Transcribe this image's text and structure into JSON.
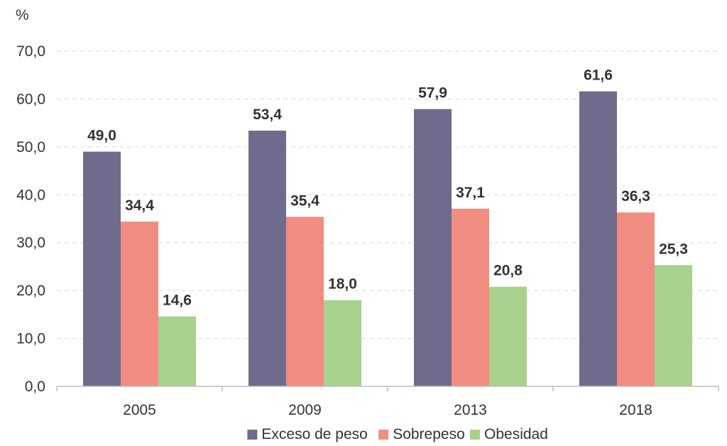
{
  "chart_data": {
    "type": "bar",
    "unit_label": "%",
    "categories": [
      "2005",
      "2009",
      "2013",
      "2018"
    ],
    "series": [
      {
        "name": "Exceso de peso",
        "color": "#6f6b8c",
        "values": [
          49.0,
          53.4,
          57.9,
          61.6
        ],
        "labels": [
          "49,0",
          "53,4",
          "57,9",
          "61,6"
        ]
      },
      {
        "name": "Sobrepeso",
        "color": "#f18c80",
        "values": [
          34.4,
          35.4,
          37.1,
          36.3
        ],
        "labels": [
          "34,4",
          "35,4",
          "37,1",
          "36,3"
        ]
      },
      {
        "name": "Obesidad",
        "color": "#a9d18e",
        "values": [
          14.6,
          18.0,
          20.8,
          25.3
        ],
        "labels": [
          "14,6",
          "18,0",
          "20,8",
          "25,3"
        ]
      }
    ],
    "ylim": [
      0,
      70
    ],
    "yticks": [
      0,
      10,
      20,
      30,
      40,
      50,
      60,
      70
    ],
    "ytick_labels": [
      "0,0",
      "10,0",
      "20,0",
      "30,0",
      "40,0",
      "50,0",
      "60,0",
      "70,0"
    ],
    "grid": "horizontal dashed",
    "legend_position": "bottom"
  }
}
